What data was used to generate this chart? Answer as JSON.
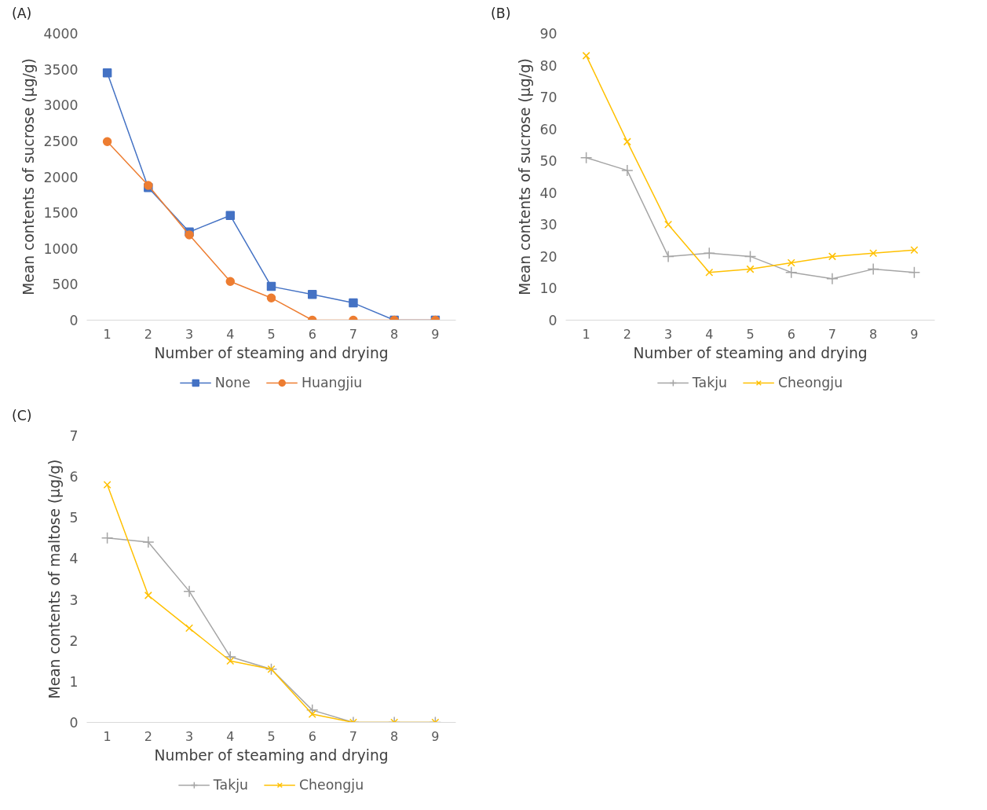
{
  "chart_data": [
    {
      "type": "line",
      "xlabel": "Number of steaming and drying",
      "ylabel": "Mean contents of sucrose (μg/g)",
      "annotations": [
        "(A)"
      ],
      "categories": [
        "1",
        "2",
        "3",
        "4",
        "5",
        "6",
        "7",
        "8",
        "9"
      ],
      "ylim": [
        0,
        4000
      ],
      "yticks": [
        0,
        500,
        1000,
        1500,
        2000,
        2500,
        3000,
        3500,
        4000
      ],
      "grid": false,
      "legend": "bottom",
      "series": [
        {
          "name": "None",
          "color": "#4472c4",
          "marker": "square",
          "values": [
            3450,
            1850,
            1230,
            1460,
            470,
            360,
            240,
            0,
            0
          ]
        },
        {
          "name": "Huangjiu",
          "color": "#ed7d31",
          "marker": "circle",
          "values": [
            2490,
            1880,
            1190,
            540,
            310,
            0,
            0,
            0,
            0
          ]
        }
      ]
    },
    {
      "type": "line",
      "xlabel": "Number of steaming and drying",
      "ylabel": "Mean contents of sucrose (μg/g)",
      "annotations": [
        "(B)"
      ],
      "categories": [
        "1",
        "2",
        "3",
        "4",
        "5",
        "6",
        "7",
        "8",
        "9"
      ],
      "ylim": [
        0,
        90
      ],
      "yticks": [
        0,
        10,
        20,
        30,
        40,
        50,
        60,
        70,
        80,
        90
      ],
      "grid": false,
      "legend": "bottom",
      "series": [
        {
          "name": "Takju",
          "color": "#a5a5a5",
          "marker": "cross",
          "values": [
            51,
            47,
            20,
            21,
            20,
            15,
            13,
            16,
            15
          ]
        },
        {
          "name": "Cheongju",
          "color": "#ffc000",
          "marker": "x",
          "values": [
            83,
            56,
            30,
            15,
            16,
            18,
            20,
            21,
            22
          ]
        }
      ]
    },
    {
      "type": "line",
      "xlabel": "Number of steaming and drying",
      "ylabel": "Mean contents of maltose (μg/g)",
      "annotations": [
        "(C)"
      ],
      "categories": [
        "1",
        "2",
        "3",
        "4",
        "5",
        "6",
        "7",
        "8",
        "9"
      ],
      "ylim": [
        0,
        7
      ],
      "yticks": [
        0,
        1,
        2,
        3,
        4,
        5,
        6,
        7
      ],
      "grid": false,
      "legend": "bottom",
      "series": [
        {
          "name": "Takju",
          "color": "#a5a5a5",
          "marker": "cross",
          "values": [
            4.5,
            4.4,
            3.2,
            1.6,
            1.3,
            0.3,
            0,
            0,
            0
          ]
        },
        {
          "name": "Cheongju",
          "color": "#ffc000",
          "marker": "x",
          "values": [
            5.8,
            3.1,
            2.3,
            1.5,
            1.3,
            0.2,
            0,
            0,
            0
          ]
        }
      ]
    }
  ]
}
